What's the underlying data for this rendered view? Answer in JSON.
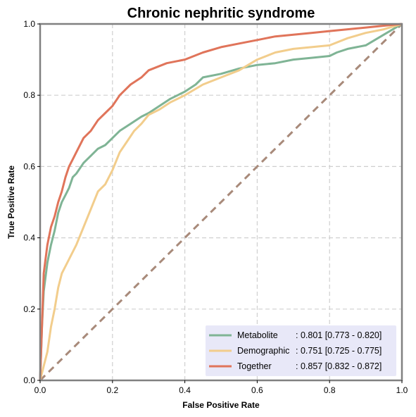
{
  "chart_data": {
    "type": "line",
    "title": "Chronic nephritic syndrome",
    "xlabel": "False Positive Rate",
    "ylabel": "True Positive Rate",
    "xlim": [
      0,
      1
    ],
    "ylim": [
      0,
      1
    ],
    "xticks": [
      "0.0",
      "0.2",
      "0.4",
      "0.6",
      "0.8",
      "1.0"
    ],
    "yticks": [
      "0.0",
      "0.2",
      "0.4",
      "0.6",
      "0.8",
      "1.0"
    ],
    "grid": true,
    "legend_position": "lower-right",
    "colors": {
      "Metabolite": "#7fb495",
      "Demographic": "#f2cd8c",
      "Together": "#e0745a",
      "diagonal": "#a88a7a",
      "legend_bg": "#e8e8f8",
      "frame": "#808080"
    },
    "legend": [
      {
        "name": "Metabolite",
        "auc_text": ": 0.801 [0.773 - 0.820]"
      },
      {
        "name": "Demographic",
        "auc_text": ": 0.751 [0.725 - 0.775]"
      },
      {
        "name": "Together",
        "auc_text": ": 0.857 [0.832 - 0.872]"
      }
    ],
    "series": [
      {
        "name": "Metabolite",
        "x": [
          0,
          0.005,
          0.01,
          0.02,
          0.03,
          0.04,
          0.05,
          0.06,
          0.07,
          0.08,
          0.09,
          0.1,
          0.12,
          0.14,
          0.16,
          0.18,
          0.2,
          0.22,
          0.25,
          0.28,
          0.3,
          0.33,
          0.36,
          0.4,
          0.43,
          0.45,
          0.5,
          0.55,
          0.6,
          0.65,
          0.7,
          0.75,
          0.8,
          0.82,
          0.85,
          0.9,
          0.95,
          1.0
        ],
        "y": [
          0,
          0.15,
          0.25,
          0.33,
          0.38,
          0.42,
          0.47,
          0.5,
          0.52,
          0.54,
          0.57,
          0.58,
          0.61,
          0.63,
          0.65,
          0.66,
          0.68,
          0.7,
          0.72,
          0.74,
          0.75,
          0.77,
          0.79,
          0.81,
          0.83,
          0.85,
          0.86,
          0.875,
          0.885,
          0.89,
          0.9,
          0.905,
          0.91,
          0.92,
          0.93,
          0.94,
          0.97,
          1.0
        ]
      },
      {
        "name": "Demographic",
        "x": [
          0,
          0.01,
          0.02,
          0.03,
          0.04,
          0.05,
          0.06,
          0.08,
          0.1,
          0.12,
          0.14,
          0.16,
          0.18,
          0.2,
          0.22,
          0.24,
          0.26,
          0.28,
          0.3,
          0.33,
          0.36,
          0.4,
          0.45,
          0.5,
          0.55,
          0.6,
          0.65,
          0.7,
          0.75,
          0.8,
          0.85,
          0.9,
          0.95,
          1.0
        ],
        "y": [
          0,
          0.04,
          0.08,
          0.15,
          0.2,
          0.26,
          0.3,
          0.34,
          0.38,
          0.43,
          0.48,
          0.53,
          0.55,
          0.59,
          0.64,
          0.67,
          0.7,
          0.72,
          0.745,
          0.76,
          0.78,
          0.8,
          0.83,
          0.85,
          0.87,
          0.9,
          0.92,
          0.93,
          0.935,
          0.94,
          0.96,
          0.975,
          0.985,
          1.0
        ]
      },
      {
        "name": "Together",
        "x": [
          0,
          0.005,
          0.01,
          0.02,
          0.03,
          0.04,
          0.05,
          0.06,
          0.07,
          0.08,
          0.09,
          0.1,
          0.12,
          0.14,
          0.16,
          0.18,
          0.2,
          0.22,
          0.25,
          0.28,
          0.3,
          0.35,
          0.4,
          0.45,
          0.5,
          0.55,
          0.6,
          0.65,
          0.7,
          0.75,
          0.8,
          0.85,
          0.9,
          0.95,
          1.0
        ],
        "y": [
          0,
          0.15,
          0.3,
          0.38,
          0.43,
          0.46,
          0.5,
          0.53,
          0.57,
          0.6,
          0.62,
          0.64,
          0.68,
          0.7,
          0.73,
          0.75,
          0.77,
          0.8,
          0.83,
          0.85,
          0.87,
          0.89,
          0.9,
          0.92,
          0.935,
          0.945,
          0.955,
          0.965,
          0.97,
          0.975,
          0.98,
          0.985,
          0.99,
          0.995,
          1.0
        ]
      }
    ]
  }
}
